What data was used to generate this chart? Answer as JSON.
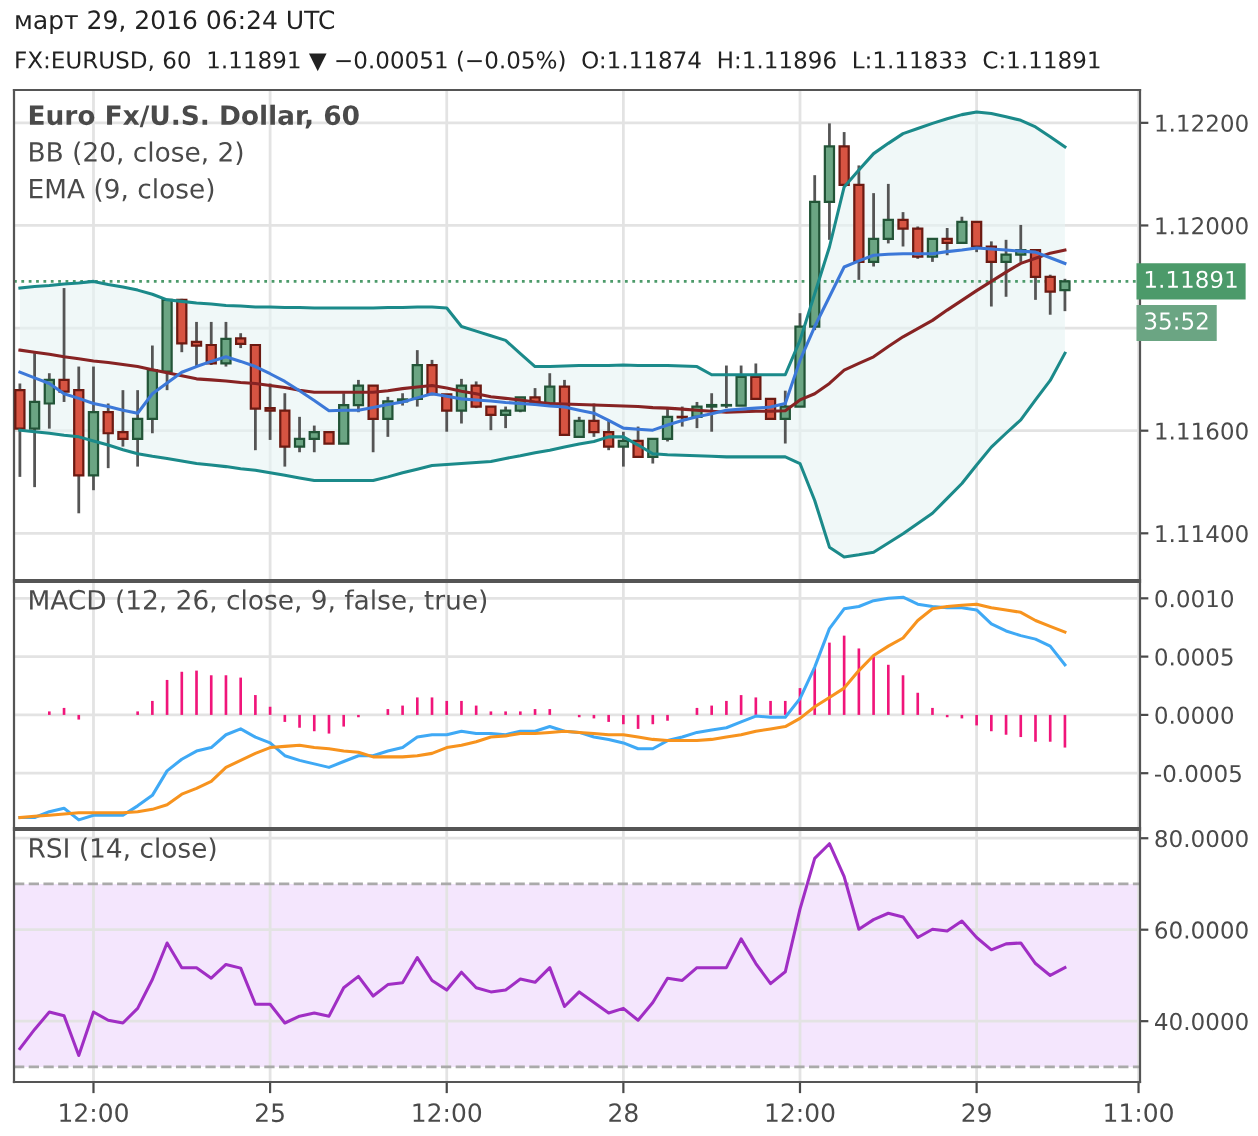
{
  "chart_data": [
    {
      "type": "candlestick",
      "title": "Euro Fx/U.S. Dollar, 60",
      "subtitle": "FX:EURUSD, 60  1.11891 ▼ −0.00051 (−0.05%)  O:1.11874  H:1.11896  L:1.11833  C:1.11891",
      "annotations": [
        "март 29, 2016 06:24 UTC",
        "BB (20, close, 2)",
        "EMA (9, close)",
        "35:52"
      ],
      "categories": [
        null,
        null,
        null,
        null,
        null,
        null,
        null,
        null,
        null,
        null,
        null,
        null,
        null,
        null,
        null,
        null,
        null,
        null,
        null,
        null,
        null,
        null,
        null,
        null,
        null,
        null,
        null,
        null,
        null,
        null,
        null,
        null,
        null,
        null,
        null,
        null,
        null,
        null,
        null,
        null,
        null,
        null,
        null,
        null,
        null,
        null,
        null,
        null,
        null,
        null,
        null,
        null,
        null,
        null,
        null,
        null,
        null,
        null,
        null,
        null,
        null,
        null,
        null,
        null,
        null,
        null,
        null,
        null,
        null,
        null,
        null,
        null,
        null,
        null,
        null,
        null,
        null
      ],
      "ohlc": [
        [
          1.11679,
          1.11692,
          1.1151,
          1.11604
        ],
        [
          1.11604,
          1.11751,
          1.1149,
          1.11656
        ],
        [
          1.11653,
          1.11712,
          1.11604,
          1.11699
        ],
        [
          1.11699,
          1.11878,
          1.11656,
          1.11676
        ],
        [
          1.11679,
          1.11725,
          1.11439,
          1.11513
        ],
        [
          1.11513,
          1.11725,
          1.11484,
          1.11636
        ],
        [
          1.11636,
          1.11653,
          1.11527,
          1.11595
        ],
        [
          1.11597,
          1.11679,
          1.11569,
          1.11584
        ],
        [
          1.11584,
          1.11679,
          1.1153,
          1.11623
        ],
        [
          1.11623,
          1.11766,
          1.11595,
          1.11718
        ],
        [
          1.11715,
          1.11857,
          1.11679,
          1.11855
        ],
        [
          1.11855,
          1.11857,
          1.11753,
          1.1177
        ],
        [
          1.11773,
          1.11812,
          1.11725,
          1.11766
        ],
        [
          1.11767,
          1.11812,
          1.11728,
          1.11731
        ],
        [
          1.11731,
          1.11812,
          1.11725,
          1.11779
        ],
        [
          1.1178,
          1.1179,
          1.11761,
          1.11769
        ],
        [
          1.11767,
          1.11767,
          1.11562,
          1.11643
        ],
        [
          1.11644,
          1.11692,
          1.11582,
          1.11639
        ],
        [
          1.11639,
          1.11673,
          1.1153,
          1.11569
        ],
        [
          1.11569,
          1.11627,
          1.11558,
          1.11584
        ],
        [
          1.11584,
          1.1161,
          1.11558,
          1.11597
        ],
        [
          1.11597,
          1.11597,
          1.11575,
          1.11575
        ],
        [
          1.11575,
          1.11673,
          1.11575,
          1.1165
        ],
        [
          1.1165,
          1.11699,
          1.11636,
          1.11688
        ],
        [
          1.11688,
          1.11688,
          1.11558,
          1.11623
        ],
        [
          1.11623,
          1.11666,
          1.11588,
          1.11657
        ],
        [
          1.11657,
          1.11673,
          1.11649,
          1.11661
        ],
        [
          1.11662,
          1.11757,
          1.11647,
          1.11728
        ],
        [
          1.11728,
          1.11738,
          1.11669,
          1.11671
        ],
        [
          1.11671,
          1.11671,
          1.11598,
          1.11639
        ],
        [
          1.11639,
          1.11701,
          1.11614,
          1.11688
        ],
        [
          1.11688,
          1.11696,
          1.11644,
          1.11647
        ],
        [
          1.11647,
          1.11647,
          1.11601,
          1.11631
        ],
        [
          1.11631,
          1.11647,
          1.11605,
          1.11639
        ],
        [
          1.11639,
          1.11665,
          1.11636,
          1.11665
        ],
        [
          1.11665,
          1.11683,
          1.11649,
          1.11653
        ],
        [
          1.11653,
          1.11712,
          1.11649,
          1.11686
        ],
        [
          1.11686,
          1.11699,
          1.11592,
          1.11592
        ],
        [
          1.11588,
          1.11627,
          1.11588,
          1.11619
        ],
        [
          1.11619,
          1.11653,
          1.11588,
          1.11597
        ],
        [
          1.11597,
          1.11621,
          1.11562,
          1.11569
        ],
        [
          1.11569,
          1.11598,
          1.1153,
          1.1158
        ],
        [
          1.1158,
          1.11608,
          1.11549,
          1.11549
        ],
        [
          1.11549,
          1.11584,
          1.11536,
          1.11584
        ],
        [
          1.11584,
          1.11644,
          1.11579,
          1.11627
        ],
        [
          1.11627,
          1.11647,
          1.11608,
          1.11626
        ],
        [
          1.11627,
          1.11656,
          1.11605,
          1.11647
        ],
        [
          1.11647,
          1.11673,
          1.11598,
          1.1165
        ],
        [
          1.11649,
          1.11727,
          1.11644,
          1.1165
        ],
        [
          1.11649,
          1.11727,
          1.11649,
          1.11705
        ],
        [
          1.11705,
          1.11731,
          1.1166,
          1.11662
        ],
        [
          1.11662,
          1.11662,
          1.11623,
          1.11623
        ],
        [
          1.11623,
          1.11678,
          1.11575,
          1.11647
        ],
        [
          1.11647,
          1.11829,
          1.11647,
          1.11803
        ],
        [
          1.11803,
          1.12098,
          1.11796,
          1.12046
        ],
        [
          1.12046,
          1.12199,
          1.11972,
          1.12154
        ],
        [
          1.12154,
          1.12182,
          1.12079,
          1.12079
        ],
        [
          1.12079,
          1.12117,
          1.11894,
          1.11929
        ],
        [
          1.11929,
          1.12063,
          1.1192,
          1.11974
        ],
        [
          1.11974,
          1.12081,
          1.11965,
          1.12011
        ],
        [
          1.12011,
          1.12026,
          1.11959,
          1.11994
        ],
        [
          1.11994,
          1.11998,
          1.11935,
          1.11939
        ],
        [
          1.11939,
          1.11974,
          1.11929,
          1.11974
        ],
        [
          1.11974,
          1.11995,
          1.11942,
          1.11966
        ],
        [
          1.11966,
          1.12017,
          1.11966,
          1.12007
        ],
        [
          1.12007,
          1.12007,
          1.11948,
          1.11959
        ],
        [
          1.11959,
          1.11969,
          1.11842,
          1.11929
        ],
        [
          1.11929,
          1.11972,
          1.11861,
          1.11943
        ],
        [
          1.11943,
          1.12001,
          1.11929,
          1.11952
        ],
        [
          1.11952,
          1.11952,
          1.11855,
          1.119
        ],
        [
          1.119,
          1.11904,
          1.11826,
          1.11871
        ],
        [
          1.11874,
          1.11896,
          1.11833,
          1.11891
        ],
        null,
        null,
        null,
        null,
        null
      ],
      "series": [
        {
          "type": "line",
          "color": "#872323",
          "values": [
            1.11757,
            1.11753,
            1.11749,
            1.11744,
            1.1174,
            1.11736,
            1.11733,
            1.11729,
            1.11725,
            1.11719,
            1.11713,
            1.11707,
            1.11701,
            1.11699,
            1.11697,
            1.11694,
            1.11692,
            1.11688,
            1.11684,
            1.11679,
            1.11675,
            1.11675,
            1.11675,
            1.11675,
            1.11675,
            1.11678,
            1.11682,
            1.11685,
            1.11688,
            1.11683,
            1.11677,
            1.11672,
            1.11666,
            1.11663,
            1.1166,
            1.11656,
            1.11653,
            1.11652,
            1.11651,
            1.1165,
            1.11649,
            1.11648,
            1.11647,
            1.11645,
            1.11644,
            1.11642,
            1.1164,
            1.11638,
            1.11636,
            1.11637,
            1.11638,
            1.11638,
            1.11639,
            1.1166,
            1.11672,
            1.11692,
            1.11718,
            1.11731,
            1.11744,
            1.11764,
            1.11783,
            1.11799,
            1.11815,
            1.11835,
            1.11854,
            1.11873,
            1.11891,
            1.11909,
            1.11926,
            1.11936,
            1.11946,
            1.11952,
            null,
            null,
            null,
            null,
            null
          ],
          "lower": [
            1.11601,
            1.11598,
            1.11595,
            1.11591,
            1.11588,
            1.1158,
            1.11572,
            1.11563,
            1.11555,
            1.1155,
            1.11546,
            1.11541,
            1.11536,
            1.11533,
            1.1153,
            1.11526,
            1.11523,
            1.11518,
            1.11513,
            1.11508,
            1.11503,
            1.11503,
            1.11503,
            1.11503,
            1.11503,
            1.1151,
            1.11518,
            1.11525,
            1.11532,
            1.11534,
            1.11536,
            1.11538,
            1.1154,
            1.11546,
            1.11551,
            1.11557,
            1.11562,
            1.11568,
            1.11574,
            1.11579,
            1.11588,
            1.11588,
            1.11572,
            1.11555,
            1.11553,
            1.11552,
            1.11551,
            1.1155,
            1.11549,
            1.11549,
            1.11549,
            1.11549,
            1.11549,
            1.11536,
            1.11464,
            1.11373,
            1.11354,
            1.11358,
            1.11363,
            1.11381,
            1.11399,
            1.11419,
            1.11439,
            1.11468,
            1.11497,
            1.11533,
            1.11568,
            1.11595,
            1.11621,
            1.1166,
            1.11698,
            1.11751,
            null,
            null,
            null,
            null,
            null
          ],
          "upper": [
            1.11878,
            1.11881,
            1.11883,
            1.11886,
            1.11888,
            1.11891,
            1.11885,
            1.1188,
            1.11874,
            1.11866,
            1.11855,
            1.11852,
            1.11849,
            1.11847,
            1.11844,
            1.11843,
            1.11841,
            1.11841,
            1.1184,
            1.1184,
            1.11839,
            1.11839,
            1.11839,
            1.11839,
            1.11839,
            1.1184,
            1.1184,
            1.11841,
            1.11841,
            1.11839,
            1.11803,
            1.11794,
            1.11785,
            1.11776,
            1.1175,
            1.11725,
            1.11725,
            1.11726,
            1.11727,
            1.11727,
            1.11727,
            1.11728,
            1.11727,
            1.11727,
            1.11727,
            1.11726,
            1.11725,
            1.11709,
            1.11709,
            1.11709,
            1.11709,
            1.11709,
            1.11709,
            1.11776,
            1.11867,
            1.11958,
            1.12075,
            1.12108,
            1.1214,
            1.1216,
            1.12179,
            1.12189,
            1.12199,
            1.12208,
            1.12216,
            1.12221,
            1.12218,
            1.12212,
            1.12205,
            1.12192,
            1.12173,
            1.12153,
            null,
            null,
            null,
            null,
            null
          ]
        },
        {
          "type": "line",
          "color": "#1b8a8a",
          "values": [
            1.11601,
            1.11598,
            1.11595,
            1.11591,
            1.11588,
            1.1158,
            1.11572,
            1.11563,
            1.11555,
            1.1155,
            1.11546,
            1.11541,
            1.11536,
            1.11533,
            1.1153,
            1.11526,
            1.11523,
            1.11518,
            1.11513,
            1.11508,
            1.11503,
            1.11503,
            1.11503,
            1.11503,
            1.11503,
            1.1151,
            1.11518,
            1.11525,
            1.11532,
            1.11534,
            1.11536,
            1.11538,
            1.1154,
            1.11546,
            1.11551,
            1.11557,
            1.11562,
            1.11568,
            1.11574,
            1.11579,
            1.11588,
            1.11588,
            1.11572,
            1.11555,
            1.11553,
            1.11552,
            1.11551,
            1.1155,
            1.11549,
            1.11549,
            1.11549,
            1.11549,
            1.11549,
            1.11536,
            1.11464,
            1.11373,
            1.11354,
            1.11358,
            1.11363,
            1.11381,
            1.11399,
            1.11419,
            1.11439,
            1.11468,
            1.11497,
            1.11533,
            1.11568,
            1.11595,
            1.11621,
            1.1166,
            1.11698,
            1.11751,
            null,
            null,
            null,
            null,
            null
          ]
        },
        {
          "type": "line",
          "color": "#1b8a8a",
          "values": [
            1.11878,
            1.11881,
            1.11883,
            1.11886,
            1.11888,
            1.11891,
            1.11885,
            1.1188,
            1.11874,
            1.11866,
            1.11855,
            1.11852,
            1.11849,
            1.11847,
            1.11844,
            1.11843,
            1.11841,
            1.11841,
            1.1184,
            1.1184,
            1.11839,
            1.11839,
            1.11839,
            1.11839,
            1.11839,
            1.1184,
            1.1184,
            1.11841,
            1.11841,
            1.11839,
            1.11803,
            1.11794,
            1.11785,
            1.11776,
            1.1175,
            1.11725,
            1.11725,
            1.11726,
            1.11727,
            1.11727,
            1.11727,
            1.11728,
            1.11727,
            1.11727,
            1.11727,
            1.11726,
            1.11725,
            1.11709,
            1.11709,
            1.11709,
            1.11709,
            1.11709,
            1.11709,
            1.11776,
            1.11867,
            1.11958,
            1.12075,
            1.12108,
            1.1214,
            1.1216,
            1.12179,
            1.12189,
            1.12199,
            1.12208,
            1.12216,
            1.12221,
            1.12218,
            1.12212,
            1.12205,
            1.12192,
            1.12173,
            1.12153,
            null,
            null,
            null,
            null,
            null
          ]
        },
        {
          "type": "line",
          "color": "#3c78d8",
          "values": [
            1.11714,
            1.11703,
            1.11692,
            1.11672,
            1.11663,
            1.11653,
            1.11647,
            1.1164,
            1.11634,
            1.11672,
            1.11693,
            1.11714,
            1.11725,
            1.11735,
            1.11744,
            1.11735,
            1.11725,
            1.11711,
            1.11696,
            1.11678,
            1.11659,
            1.11639,
            1.1164,
            1.1164,
            1.11645,
            1.11651,
            1.11656,
            1.11664,
            1.11672,
            1.11667,
            1.11662,
            1.1166,
            1.11658,
            1.11655,
            1.11653,
            1.11651,
            1.11648,
            1.11646,
            1.1164,
            1.11634,
            1.1162,
            1.11605,
            1.11603,
            1.11601,
            1.11611,
            1.1162,
            1.11627,
            1.11633,
            1.1164,
            1.11642,
            1.11644,
            1.11646,
            1.11653,
            1.11737,
            1.11803,
            1.11861,
            1.11919,
            1.11931,
            1.11942,
            1.11944,
            1.11945,
            1.11945,
            1.11945,
            1.11949,
            1.11952,
            1.11956,
            1.11954,
            1.11952,
            1.1195,
            1.11948,
            1.11937,
            1.11926,
            null,
            null,
            null,
            null,
            null
          ]
        }
      ],
      "ref_lines": [
        {
          "axis": "y",
          "value": 1.11891,
          "label": "1.11891",
          "color": "#4c9a6a",
          "line_style": "dotted"
        }
      ],
      "ylim": [
        1.11309,
        1.12264
      ],
      "yticks": [
        {
          "value": 1.114,
          "label": "1.11400"
        },
        {
          "value": 1.116,
          "label": "1.11600"
        },
        {
          "value": 1.118,
          "label": null
        },
        {
          "value": 1.12,
          "label": "1.12000"
        },
        {
          "value": 1.122,
          "label": "1.12200"
        }
      ],
      "grid": true,
      "tick_labels": "y"
    },
    {
      "type": "line",
      "title": "MACD (12, 26, close, 9, false, true)",
      "categories": [
        null,
        null,
        null,
        null,
        null,
        null,
        null,
        null,
        null,
        null,
        null,
        null,
        null,
        null,
        null,
        null,
        null,
        null,
        null,
        null,
        null,
        null,
        null,
        null,
        null,
        null,
        null,
        null,
        null,
        null,
        null,
        null,
        null,
        null,
        null,
        null,
        null,
        null,
        null,
        null,
        null,
        null,
        null,
        null,
        null,
        null,
        null,
        null,
        null,
        null,
        null,
        null,
        null,
        null,
        null,
        null,
        null,
        null,
        null,
        null,
        null,
        null,
        null,
        null,
        null,
        null,
        null,
        null,
        null,
        null,
        null,
        null,
        null,
        null,
        null,
        null,
        null
      ],
      "series": [
        {
          "type": "bar",
          "color": "#f0157a",
          "values": [
            null,
            null,
            3e-05,
            6e-05,
            -4e-05,
            null,
            null,
            null,
            3e-05,
            0.00012,
            0.0003,
            0.00037,
            0.00038,
            0.00034,
            0.00034,
            0.00032,
            0.00017,
            7e-05,
            -6e-05,
            -0.00011,
            -0.00014,
            -0.00016,
            -0.0001,
            -2e-05,
            null,
            5e-05,
            8e-05,
            0.00015,
            0.00015,
            0.00012,
            0.00012,
            8e-05,
            3e-05,
            3e-05,
            3e-05,
            5e-05,
            5e-05,
            null,
            -2e-05,
            -3e-05,
            -6e-05,
            -8e-05,
            -0.00012,
            -8e-05,
            -5e-05,
            null,
            6e-05,
            8e-05,
            0.00012,
            0.00017,
            0.00015,
            0.00012,
            0.00012,
            0.00023,
            0.00041,
            0.00062,
            0.00068,
            0.00057,
            0.0005,
            0.00043,
            0.00034,
            0.00019,
            6e-05,
            -2e-05,
            -3e-05,
            -9e-05,
            -0.00014,
            -0.00017,
            -0.00019,
            -0.00023,
            -0.00023,
            -0.00028,
            null,
            null,
            null,
            null,
            null
          ]
        },
        {
          "type": "line",
          "color": "#3fa9f5",
          "values": [
            -0.00088,
            -0.00088,
            -0.00083,
            -0.0008,
            -0.0009,
            -0.00086,
            -0.00086,
            -0.00086,
            -0.00078,
            -0.00069,
            -0.00048,
            -0.00038,
            -0.00031,
            -0.00028,
            -0.00017,
            -0.00012,
            -0.00019,
            -0.00024,
            -0.00035,
            -0.00039,
            -0.00042,
            -0.00045,
            -0.0004,
            -0.00035,
            -0.00035,
            -0.00031,
            -0.00028,
            -0.00019,
            -0.00017,
            -0.00017,
            -0.00014,
            -0.00016,
            -0.00016,
            -0.00017,
            -0.00014,
            -0.00014,
            -0.0001,
            -0.00014,
            -0.00015,
            -0.00019,
            -0.00021,
            -0.00024,
            -0.00029,
            -0.00029,
            -0.00022,
            -0.00019,
            -0.00015,
            -0.00013,
            -0.00011,
            -6e-05,
            -1e-05,
            -2e-05,
            -2e-05,
            0.00014,
            0.00041,
            0.00074,
            0.00091,
            0.00093,
            0.00098,
            0.001,
            0.00101,
            0.00095,
            0.00093,
            0.00092,
            0.00092,
            0.0009,
            0.00078,
            0.00072,
            0.00068,
            0.00065,
            0.00059,
            0.00043,
            null,
            null,
            null,
            null,
            null
          ]
        },
        {
          "type": "line",
          "color": "#f7931e",
          "values": [
            -0.00088,
            -0.00087,
            -0.00086,
            -0.00085,
            -0.00084,
            -0.00084,
            -0.00084,
            -0.00084,
            -0.00083,
            -0.00081,
            -0.00077,
            -0.00068,
            -0.00063,
            -0.00057,
            -0.00045,
            -0.00039,
            -0.00033,
            -0.00028,
            -0.00027,
            -0.00026,
            -0.00028,
            -0.00029,
            -0.00031,
            -0.00032,
            -0.00036,
            -0.00036,
            -0.00036,
            -0.00035,
            -0.00033,
            -0.00028,
            -0.00026,
            -0.00023,
            -0.00019,
            -0.00018,
            -0.00016,
            -0.00016,
            -0.00015,
            -0.00014,
            -0.00015,
            -0.00016,
            -0.00017,
            -0.00017,
            -0.00019,
            -0.00021,
            -0.00022,
            -0.00022,
            -0.00022,
            -0.00021,
            -0.00019,
            -0.00017,
            -0.00014,
            -0.00012,
            -0.0001,
            -3e-05,
            7e-05,
            0.00015,
            0.00023,
            0.00038,
            0.00051,
            0.00059,
            0.00066,
            0.00081,
            0.00091,
            0.00093,
            0.00094,
            0.00095,
            0.00092,
            0.0009,
            0.00088,
            0.00081,
            0.00076,
            0.00071,
            null,
            null,
            null,
            null,
            null
          ]
        }
      ],
      "ylim": [
        -0.00097,
        0.00114
      ],
      "yticks": [
        {
          "value": -0.0005,
          "label": "-0.0005"
        },
        {
          "value": 0,
          "label": "0.0000"
        },
        {
          "value": 0.0005,
          "label": "0.0005"
        },
        {
          "value": 0.001,
          "label": "0.0010"
        }
      ],
      "grid": true,
      "tick_labels": "y"
    },
    {
      "type": "line",
      "title": "RSI (14, close)",
      "series": [
        {
          "type": "line",
          "color": "#a02ec4",
          "values": [
            34.0,
            38.2,
            42.0,
            41.2,
            32.5,
            42.0,
            40.2,
            39.6,
            42.8,
            49.1,
            57.1,
            51.7,
            51.7,
            49.4,
            52.4,
            51.6,
            43.7,
            43.7,
            39.6,
            41.1,
            41.8,
            41.1,
            47.3,
            49.8,
            45.5,
            48.0,
            48.4,
            53.9,
            48.9,
            46.8,
            50.7,
            47.3,
            46.4,
            46.8,
            49.2,
            48.5,
            51.7,
            43.2,
            46.4,
            44.1,
            41.8,
            42.8,
            40.2,
            44.1,
            49.4,
            48.9,
            51.7,
            51.7,
            51.7,
            58.0,
            52.6,
            48.2,
            50.8,
            64.5,
            75.6,
            78.8,
            71.6,
            60.1,
            62.2,
            63.6,
            62.8,
            58.3,
            60.1,
            59.7,
            61.9,
            58.3,
            55.6,
            56.9,
            57.1,
            52.6,
            50.0,
            51.7,
            null,
            null,
            null,
            null,
            null
          ]
        }
      ],
      "bands": [
        {
          "axis": "y",
          "from": 30,
          "to": 70,
          "color": "#f4e6fd"
        }
      ],
      "ref_lines": [
        {
          "axis": "y",
          "value": 30,
          "color": "#aaaaaa",
          "line_style": "dashed"
        },
        {
          "axis": "y",
          "value": 70,
          "color": "#aaaaaa",
          "line_style": "dashed"
        }
      ],
      "categories": [
        null,
        null,
        null,
        null,
        null,
        "12:00",
        null,
        null,
        null,
        null,
        null,
        null,
        null,
        null,
        null,
        null,
        null,
        "25",
        null,
        null,
        null,
        null,
        null,
        null,
        null,
        null,
        null,
        null,
        null,
        "12:00",
        null,
        null,
        null,
        null,
        null,
        null,
        null,
        null,
        null,
        null,
        null,
        "28",
        null,
        null,
        null,
        null,
        null,
        null,
        null,
        null,
        null,
        null,
        null,
        "12:00",
        null,
        null,
        null,
        null,
        null,
        null,
        null,
        null,
        null,
        null,
        null,
        "29",
        null,
        null,
        null,
        null,
        null,
        null,
        null,
        null,
        null,
        null,
        "11:00"
      ],
      "ylim": [
        26.7,
        81.8
      ],
      "yticks": [
        {
          "value": 40,
          "label": "40.0000"
        },
        {
          "value": 60,
          "label": "60.0000"
        },
        {
          "value": 80,
          "label": "80.0000"
        }
      ],
      "grid": true
    }
  ]
}
